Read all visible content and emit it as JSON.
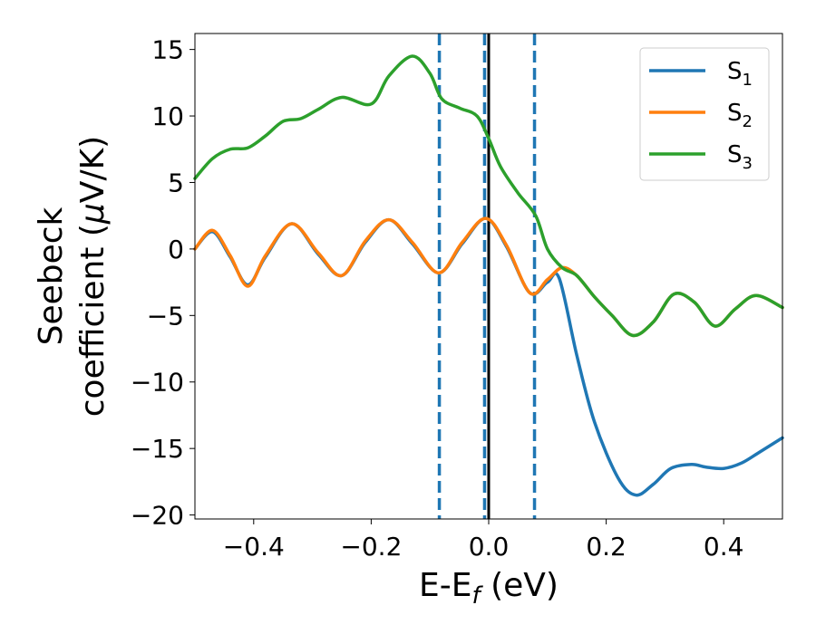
{
  "chart_data": {
    "type": "line",
    "xlabel": {
      "main": "E-E",
      "sub": "f",
      "unit": " (eV)"
    },
    "ylabel": {
      "line1": "Seebeck",
      "line2_prefix": "coefficient  (",
      "mu": "μ",
      "line2_suffix": "V/K)"
    },
    "xlim": [
      -0.5,
      0.5
    ],
    "ylim": [
      -20.3,
      16.2
    ],
    "xticks": [
      -0.4,
      -0.2,
      0.0,
      0.2,
      0.4
    ],
    "xtick_labels": [
      "−0.4",
      "−0.2",
      "0.0",
      "0.2",
      "0.4"
    ],
    "yticks": [
      -20,
      -15,
      -10,
      -5,
      0,
      5,
      10,
      15
    ],
    "ytick_labels": [
      "−20",
      "−15",
      "−10",
      "−5",
      "0",
      "5",
      "10",
      "15"
    ],
    "legend_position": "top-right",
    "vlines": [
      {
        "x": -0.084,
        "style": "dashed",
        "color": "#1f77b4"
      },
      {
        "x": -0.007,
        "style": "dashed",
        "color": "#1f77b4"
      },
      {
        "x": 0.0,
        "style": "solid",
        "color": "#000000"
      },
      {
        "x": 0.078,
        "style": "dashed",
        "color": "#1f77b4"
      }
    ],
    "series": [
      {
        "name": "S",
        "sub": "1",
        "color": "#1f77b4",
        "x": [
          -0.5,
          -0.47,
          -0.44,
          -0.41,
          -0.38,
          -0.335,
          -0.29,
          -0.25,
          -0.21,
          -0.17,
          -0.13,
          -0.085,
          -0.045,
          -0.005,
          0.03,
          0.07,
          0.1,
          0.12,
          0.15,
          0.18,
          0.22,
          0.25,
          0.28,
          0.31,
          0.345,
          0.37,
          0.4,
          0.43,
          0.46,
          0.5
        ],
        "y": [
          0.0,
          1.3,
          -0.6,
          -2.7,
          -0.6,
          1.9,
          -0.4,
          -2.0,
          0.5,
          2.2,
          0.4,
          -1.8,
          0.4,
          2.3,
          0.2,
          -3.3,
          -2.5,
          -2.2,
          -8.0,
          -13.0,
          -17.2,
          -18.5,
          -17.7,
          -16.5,
          -16.2,
          -16.4,
          -16.5,
          -16.1,
          -15.3,
          -14.2
        ]
      },
      {
        "name": "S",
        "sub": "2",
        "color": "#ff7f0e",
        "x": [
          -0.5,
          -0.47,
          -0.44,
          -0.41,
          -0.38,
          -0.335,
          -0.29,
          -0.25,
          -0.21,
          -0.17,
          -0.13,
          -0.085,
          -0.045,
          -0.005,
          0.03,
          0.07,
          0.1,
          0.125,
          0.15,
          0.18,
          0.21,
          0.245,
          0.28,
          0.315,
          0.35,
          0.385,
          0.42,
          0.455,
          0.5
        ],
        "y": [
          0.0,
          1.4,
          -0.5,
          -2.8,
          -0.5,
          1.9,
          -0.3,
          -2.0,
          0.6,
          2.2,
          0.5,
          -1.8,
          0.5,
          2.3,
          0.3,
          -3.3,
          -2.3,
          -1.4,
          -2.0,
          -3.6,
          -5.0,
          -6.5,
          -5.5,
          -3.4,
          -4.0,
          -5.8,
          -4.5,
          -3.5,
          -4.4
        ]
      },
      {
        "name": "S",
        "sub": "3",
        "color": "#2ca02c",
        "x": [
          -0.5,
          -0.47,
          -0.44,
          -0.41,
          -0.38,
          -0.35,
          -0.32,
          -0.29,
          -0.25,
          -0.2,
          -0.17,
          -0.13,
          -0.1,
          -0.08,
          -0.05,
          -0.02,
          0.0,
          0.02,
          0.05,
          0.08,
          0.1,
          0.125,
          0.15,
          0.18,
          0.21,
          0.245,
          0.28,
          0.315,
          0.35,
          0.385,
          0.42,
          0.455,
          0.5
        ],
        "y": [
          5.3,
          6.8,
          7.5,
          7.6,
          8.5,
          9.6,
          9.8,
          10.5,
          11.4,
          10.9,
          13.0,
          14.5,
          13.2,
          11.3,
          10.6,
          10.0,
          8.3,
          6.2,
          4.2,
          2.5,
          0.0,
          -1.4,
          -2.0,
          -3.6,
          -5.0,
          -6.5,
          -5.5,
          -3.4,
          -4.0,
          -5.8,
          -4.5,
          -3.5,
          -4.4
        ]
      }
    ]
  }
}
